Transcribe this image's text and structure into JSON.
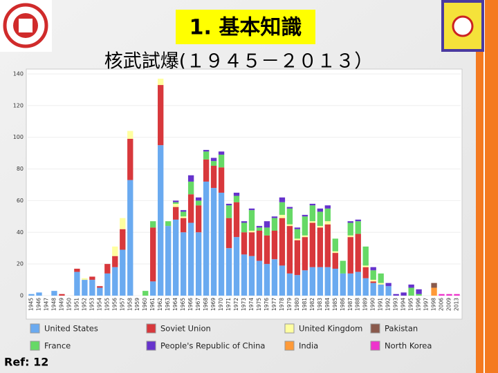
{
  "slide": {
    "title": "1. 基本知識",
    "subtitle": "核武試爆(１９４５－２０１３）",
    "ref": "Ref: 12"
  },
  "chart_data": {
    "type": "bar",
    "stacked": true,
    "categories": [
      "1945",
      "1946",
      "1947",
      "1948",
      "1949",
      "1950",
      "1951",
      "1952",
      "1953",
      "1954",
      "1955",
      "1956",
      "1957",
      "1958",
      "1959",
      "1960",
      "1961",
      "1962",
      "1963",
      "1964",
      "1965",
      "1966",
      "1967",
      "1968",
      "1969",
      "1970",
      "1971",
      "1972",
      "1973",
      "1974",
      "1975",
      "1976",
      "1977",
      "1978",
      "1979",
      "1980",
      "1981",
      "1982",
      "1983",
      "1984",
      "1985",
      "1986",
      "1987",
      "1988",
      "1989",
      "1990",
      "1991",
      "1992",
      "1993",
      "1994",
      "1995",
      "1996",
      "1997",
      "1998",
      "2006",
      "2009",
      "2013"
    ],
    "series": [
      {
        "name": "United States",
        "color": "#6aaaf0",
        "values": [
          1,
          2,
          0,
          3,
          0,
          0,
          15,
          10,
          10,
          5,
          14,
          18,
          29,
          73,
          0,
          0,
          9,
          95,
          44,
          48,
          40,
          46,
          40,
          72,
          68,
          65,
          30,
          37,
          26,
          25,
          22,
          20,
          23,
          19,
          14,
          13,
          16,
          18,
          18,
          18,
          17,
          14,
          14,
          15,
          11,
          8,
          7,
          6,
          0,
          0,
          0,
          0,
          0,
          0,
          0,
          0,
          0
        ]
      },
      {
        "name": "Soviet Union",
        "color": "#d8383c",
        "values": [
          0,
          0,
          0,
          0,
          1,
          0,
          2,
          0,
          2,
          1,
          6,
          7,
          13,
          26,
          0,
          0,
          34,
          38,
          0,
          8,
          9,
          18,
          17,
          14,
          14,
          16,
          19,
          22,
          14,
          15,
          19,
          18,
          18,
          30,
          30,
          22,
          21,
          28,
          25,
          27,
          10,
          0,
          23,
          24,
          7,
          1,
          0,
          0,
          0,
          0,
          0,
          0,
          0,
          0,
          0,
          0,
          0
        ]
      },
      {
        "name": "United Kingdom",
        "color": "#ffffa0",
        "values": [
          0,
          0,
          0,
          0,
          0,
          0,
          0,
          1,
          0,
          0,
          0,
          6,
          7,
          5,
          0,
          0,
          0,
          4,
          0,
          2,
          1,
          0,
          0,
          0,
          0,
          0,
          0,
          0,
          0,
          1,
          0,
          0,
          0,
          2,
          1,
          1,
          1,
          1,
          1,
          2,
          1,
          0,
          1,
          0,
          1,
          1,
          1,
          0,
          0,
          0,
          0,
          0,
          0,
          0,
          0,
          0,
          0
        ]
      },
      {
        "name": "Pakistan",
        "color": "#8a5a4c",
        "values": [
          0,
          0,
          0,
          0,
          0,
          0,
          0,
          0,
          0,
          0,
          0,
          0,
          0,
          0,
          0,
          0,
          0,
          0,
          0,
          0,
          0,
          0,
          0,
          0,
          0,
          0,
          0,
          0,
          0,
          0,
          0,
          0,
          0,
          0,
          0,
          0,
          0,
          0,
          0,
          0,
          0,
          0,
          0,
          0,
          0,
          0,
          0,
          0,
          0,
          0,
          0,
          0,
          0,
          3,
          0,
          0,
          0
        ]
      },
      {
        "name": "France",
        "color": "#66d966",
        "values": [
          0,
          0,
          0,
          0,
          0,
          0,
          0,
          0,
          0,
          0,
          0,
          0,
          0,
          0,
          0,
          3,
          4,
          0,
          3,
          1,
          3,
          8,
          3,
          5,
          3,
          8,
          8,
          4,
          6,
          13,
          2,
          5,
          8,
          8,
          10,
          6,
          12,
          10,
          9,
          8,
          8,
          8,
          8,
          8,
          12,
          6,
          6,
          0,
          0,
          0,
          5,
          1,
          0,
          0,
          0,
          0,
          0
        ]
      },
      {
        "name": "People's Republic of China",
        "color": "#6633cc",
        "values": [
          0,
          0,
          0,
          0,
          0,
          0,
          0,
          0,
          0,
          0,
          0,
          0,
          0,
          0,
          0,
          0,
          0,
          0,
          0,
          1,
          1,
          4,
          2,
          1,
          2,
          2,
          1,
          2,
          1,
          1,
          1,
          4,
          1,
          3,
          1,
          1,
          1,
          1,
          2,
          2,
          0,
          0,
          1,
          1,
          0,
          2,
          0,
          2,
          1,
          2,
          2,
          3,
          0,
          0,
          0,
          0,
          0
        ]
      },
      {
        "name": "India",
        "color": "#ff9a38",
        "values": [
          0,
          0,
          0,
          0,
          0,
          0,
          0,
          0,
          0,
          0,
          0,
          0,
          0,
          0,
          0,
          0,
          0,
          0,
          0,
          0,
          0,
          0,
          0,
          0,
          0,
          0,
          0,
          0,
          0,
          0,
          0,
          0,
          0,
          0,
          0,
          0,
          0,
          0,
          0,
          0,
          0,
          0,
          0,
          0,
          0,
          0,
          0,
          0,
          0,
          0,
          0,
          0,
          0,
          5,
          0,
          0,
          0
        ]
      },
      {
        "name": "North Korea",
        "color": "#ee33cc",
        "values": [
          0,
          0,
          0,
          0,
          0,
          0,
          0,
          0,
          0,
          0,
          0,
          0,
          0,
          0,
          0,
          0,
          0,
          0,
          0,
          0,
          0,
          0,
          0,
          0,
          0,
          0,
          0,
          0,
          0,
          0,
          0,
          0,
          0,
          0,
          0,
          0,
          0,
          0,
          0,
          0,
          0,
          0,
          0,
          0,
          0,
          0,
          0,
          0,
          0,
          0,
          0,
          0,
          0,
          0,
          1,
          1,
          1
        ]
      }
    ],
    "ylim": [
      0,
      140
    ],
    "yticks": [
      0,
      20,
      40,
      60,
      80,
      100,
      120,
      140
    ],
    "grid": true
  }
}
